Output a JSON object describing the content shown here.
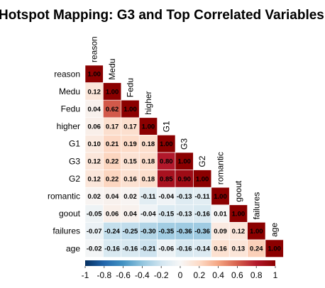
{
  "chart_data": {
    "type": "heatmap",
    "title": "Hotspot Mapping: G3 and Top Correlated Variables",
    "variables": [
      "reason",
      "Medu",
      "Fedu",
      "higher",
      "G1",
      "G3",
      "G2",
      "romantic",
      "goout",
      "failures",
      "age"
    ],
    "matrix_lower": [
      [
        "1.00"
      ],
      [
        "0.12",
        "1.00"
      ],
      [
        "0.04",
        "0.62",
        "1.00"
      ],
      [
        "0.06",
        "0.17",
        "0.17",
        "1.00"
      ],
      [
        "0.10",
        "0.21",
        "0.19",
        "0.18",
        "1.00"
      ],
      [
        "0.12",
        "0.22",
        "0.15",
        "0.18",
        "0.80",
        "1.00"
      ],
      [
        "0.12",
        "0.22",
        "0.16",
        "0.18",
        "0.85",
        "0.90",
        "1.00"
      ],
      [
        "0.02",
        "0.04",
        "0.02",
        "-0.11",
        "-0.04",
        "-0.13",
        "-0.11",
        "1.00"
      ],
      [
        "-0.05",
        "0.06",
        "0.04",
        "-0.04",
        "-0.15",
        "-0.13",
        "-0.16",
        "0.01",
        "1.00"
      ],
      [
        "-0.07",
        "-0.24",
        "-0.25",
        "-0.30",
        "-0.35",
        "-0.36",
        "-0.36",
        "0.09",
        "0.12",
        "1.00"
      ],
      [
        "-0.02",
        "-0.16",
        "-0.16",
        "-0.21",
        "-0.06",
        "-0.16",
        "-0.14",
        "0.16",
        "0.13",
        "0.24",
        "1.00"
      ]
    ],
    "color_scale": {
      "min": -1,
      "max": 1,
      "ticks": [
        "-1",
        "-0.8",
        "-0.6",
        "-0.4",
        "-0.2",
        "0",
        "0.2",
        "0.4",
        "0.6",
        "0.8",
        "1"
      ],
      "low_color": "#053061",
      "mid_color": "#f7f7f7",
      "high_color": "#8b0000"
    },
    "legend_position": "bottom"
  }
}
